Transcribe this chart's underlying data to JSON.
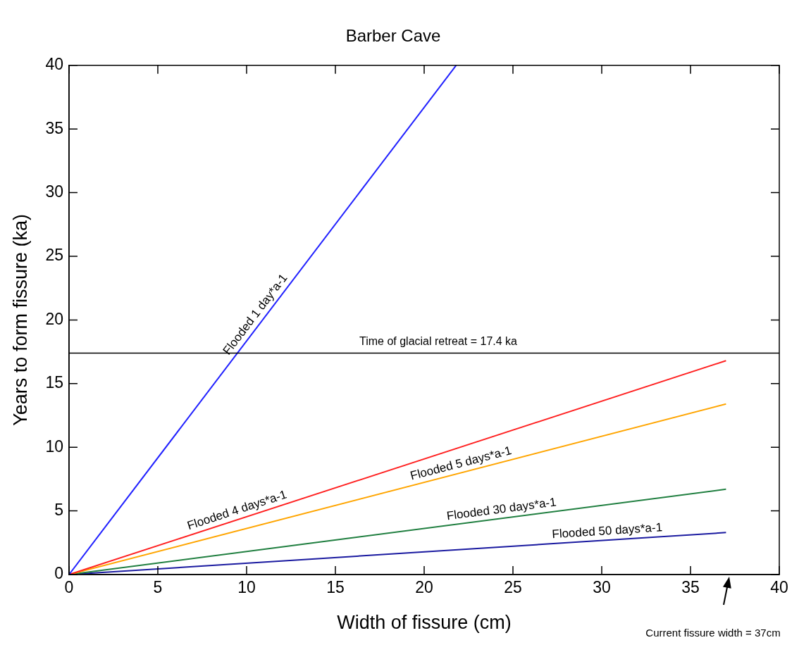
{
  "chart_data": {
    "type": "line",
    "title": "Barber Cave",
    "xlabel": "Width of fissure (cm)",
    "ylabel": "Years to form fissure (ka)",
    "xlim": [
      0,
      40
    ],
    "xticks": [
      0,
      5,
      10,
      15,
      20,
      25,
      30,
      35,
      40
    ],
    "ylim": [
      0,
      40
    ],
    "yticks": [
      0,
      5,
      10,
      15,
      20,
      25,
      30,
      35,
      40
    ],
    "grid": false,
    "legend": false,
    "marker": "none",
    "line_style": "solid",
    "series": [
      {
        "name": "Flooded 1 day*a-1",
        "color": "#2020ff",
        "x": [
          0,
          21.8
        ],
        "values": [
          0,
          40
        ]
      },
      {
        "name": "Flooded 4 days*a-1",
        "color": "#ff2020",
        "x": [
          0,
          37
        ],
        "values": [
          0,
          16.8
        ]
      },
      {
        "name": "Flooded 5 days*a-1",
        "color": "#ffa500",
        "x": [
          0,
          37
        ],
        "values": [
          0,
          13.4
        ]
      },
      {
        "name": "Flooded 30 days*a-1",
        "color": "#207f40",
        "x": [
          0,
          37
        ],
        "values": [
          0,
          6.7
        ]
      },
      {
        "name": "Flooded 50 days*a-1",
        "color": "#1a1aa0",
        "x": [
          0,
          37
        ],
        "values": [
          0,
          3.3
        ]
      }
    ],
    "ref_lines": [
      {
        "axis": "y",
        "value": 17.4,
        "label": "Time of glacial retreat = 17.4 ka",
        "color": "#000000"
      }
    ],
    "annotations": [
      "Current fissure width = 37cm"
    ]
  }
}
